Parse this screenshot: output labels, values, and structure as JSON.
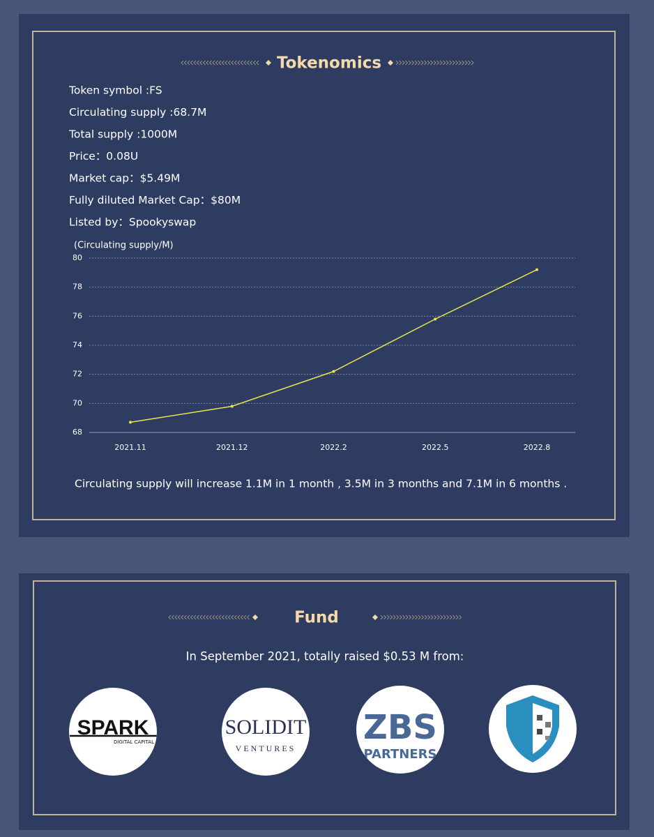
{
  "header": {
    "title": "Tokenomics"
  },
  "info": [
    "Token symbol :FS",
    "Circulating  supply :68.7M",
    "Total supply :1000M",
    "Price：0.08U",
    "Market cap：$5.49M",
    "Fully diluted Market Cap：$80M",
    "Listed by：Spookyswap"
  ],
  "chart_data": {
    "type": "line",
    "y_label": "(Circulating  supply/M)",
    "categories": [
      "2021.11",
      "2021.12",
      "2022.2",
      "2022.5",
      "2022.8"
    ],
    "values": [
      68.7,
      69.8,
      72.2,
      75.8,
      79.2
    ],
    "color": "#e6e84a",
    "ylim": [
      68,
      80
    ],
    "yticks": [
      68,
      70,
      72,
      74,
      76,
      78,
      80
    ],
    "grid": true
  },
  "note": "Circulating supply will increase  1.1M in 1 month , 3.5M in 3 months and 7.1M in 6 months .",
  "fund": {
    "title": "Fund",
    "text": "In September 2021, totally raised $0.53 M from:",
    "logos": [
      {
        "text": [
          "SPARK",
          "DIGITAL CAPITAL"
        ]
      },
      {
        "text": [
          "SOLIDIT",
          "VENTURES"
        ]
      },
      {
        "text": [
          "ZBS",
          "PARTNERS"
        ]
      },
      {
        "text": []
      }
    ]
  }
}
